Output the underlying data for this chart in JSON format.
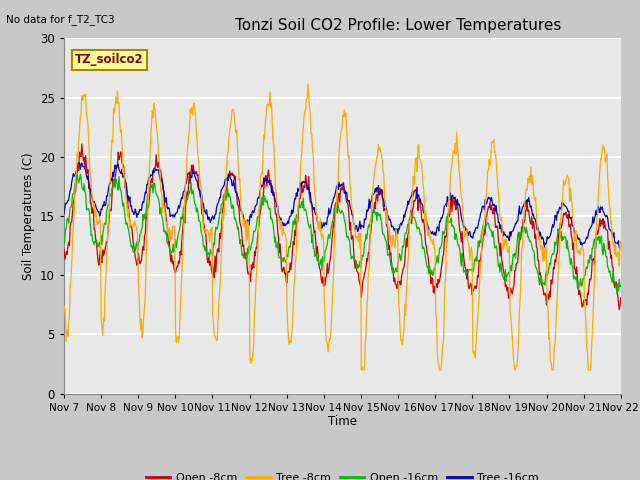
{
  "title": "Tonzi Soil CO2 Profile: Lower Temperatures",
  "top_left_text": "No data for f_T2_TC3",
  "ylabel": "Soil Temperatures (C)",
  "xlabel": "Time",
  "ylim": [
    0,
    30
  ],
  "background_color": "#e8e8e8",
  "plot_bg_color": "#e8e8e8",
  "series": {
    "open_8cm": {
      "color": "#cc0000",
      "label": "Open -8cm"
    },
    "tree_8cm": {
      "color": "#ffaa00",
      "label": "Tree -8cm"
    },
    "open_16cm": {
      "color": "#00bb00",
      "label": "Open -16cm"
    },
    "tree_16cm": {
      "color": "#0000cc",
      "label": "Tree -16cm"
    }
  },
  "xtick_labels": [
    "Nov 7",
    "Nov 8",
    "Nov 9",
    "Nov 10",
    "Nov 11",
    "Nov 12",
    "Nov 13",
    "Nov 14",
    "Nov 15",
    "Nov 16",
    "Nov 17",
    "Nov 18",
    "Nov 19",
    "Nov 20",
    "Nov 21",
    "Nov 22"
  ],
  "ytick_values": [
    0,
    5,
    10,
    15,
    20,
    25,
    30
  ],
  "inset_label": "TZ_soilco2"
}
